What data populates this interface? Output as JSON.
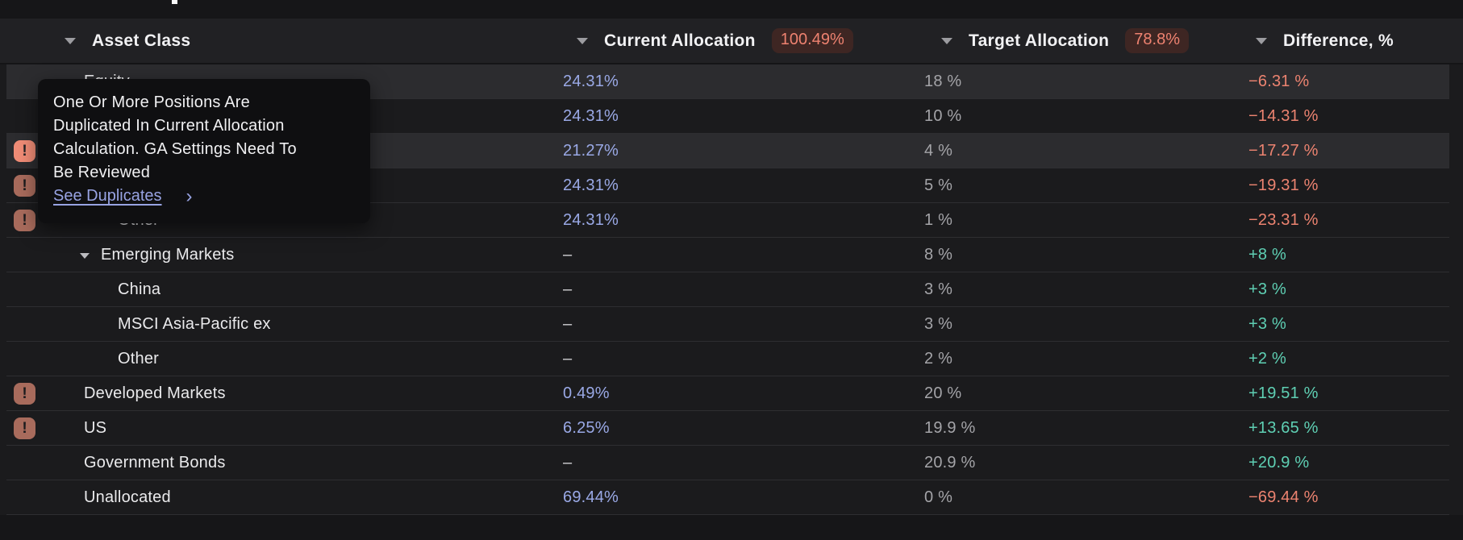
{
  "header": {
    "columns": [
      {
        "label": "Asset Class"
      },
      {
        "label": "Current Allocation",
        "badge": "100.49%"
      },
      {
        "label": "Target Allocation",
        "badge": "78.8%"
      },
      {
        "label": "Difference, %"
      }
    ]
  },
  "tooltip": {
    "lines": [
      "One Or More Positions Are",
      "Duplicated In Current Allocation",
      "Calculation. GA Settings Need To",
      "Be Reviewed"
    ],
    "link_label": "See Duplicates",
    "chevron": "›"
  },
  "table": {
    "rows": [
      {
        "label": "Equity",
        "level": 1,
        "icon": null,
        "caret": false,
        "highlighted": true,
        "current": "24.31%",
        "current_tone": "value",
        "target": "18 %",
        "difference": "−6.31 %",
        "difference_tone": "negative"
      },
      {
        "label": "",
        "level": 2,
        "icon": null,
        "caret": false,
        "highlighted": false,
        "current": "24.31%",
        "current_tone": "value",
        "target": "10 %",
        "difference": "−14.31 %",
        "difference_tone": "negative"
      },
      {
        "label": "",
        "level": 2,
        "icon": "bright",
        "caret": false,
        "highlighted": true,
        "current": "21.27%",
        "current_tone": "value",
        "target": "4 %",
        "difference": "−17.27 %",
        "difference_tone": "negative"
      },
      {
        "label": "",
        "level": 2,
        "icon": "muted",
        "caret": false,
        "highlighted": false,
        "current": "24.31%",
        "current_tone": "value",
        "target": "5 %",
        "difference": "−19.31 %",
        "difference_tone": "negative"
      },
      {
        "label": "Other",
        "level": 3,
        "icon": "muted",
        "caret": false,
        "highlighted": false,
        "current": "24.31%",
        "current_tone": "value",
        "target": "1 %",
        "difference": "−23.31 %",
        "difference_tone": "negative"
      },
      {
        "label": "Emerging Markets",
        "level": 2,
        "icon": null,
        "caret": true,
        "highlighted": false,
        "current": "–",
        "current_tone": "dash",
        "target": "8 %",
        "difference": "+8 %",
        "difference_tone": "positive"
      },
      {
        "label": "China",
        "level": 3,
        "icon": null,
        "caret": false,
        "highlighted": false,
        "current": "–",
        "current_tone": "dash",
        "target": "3 %",
        "difference": "+3 %",
        "difference_tone": "positive"
      },
      {
        "label": "MSCI Asia-Pacific ex",
        "level": 3,
        "icon": null,
        "caret": false,
        "highlighted": false,
        "current": "–",
        "current_tone": "dash",
        "target": "3 %",
        "difference": "+3 %",
        "difference_tone": "positive"
      },
      {
        "label": "Other",
        "level": 3,
        "icon": null,
        "caret": false,
        "highlighted": false,
        "current": "–",
        "current_tone": "dash",
        "target": "2 %",
        "difference": "+2 %",
        "difference_tone": "positive"
      },
      {
        "label": "Developed Markets",
        "level": 1,
        "icon": "muted",
        "caret": false,
        "highlighted": false,
        "current": "0.49%",
        "current_tone": "value",
        "target": "20 %",
        "difference": "+19.51 %",
        "difference_tone": "positive"
      },
      {
        "label": "US",
        "level": 1,
        "icon": "muted",
        "caret": false,
        "highlighted": false,
        "current": "6.25%",
        "current_tone": "value",
        "target": "19.9 %",
        "difference": "+13.65 %",
        "difference_tone": "positive"
      },
      {
        "label": "Government Bonds",
        "level": 1,
        "icon": null,
        "caret": false,
        "highlighted": false,
        "current": "–",
        "current_tone": "dash",
        "target": "20.9 %",
        "difference": "+20.9 %",
        "difference_tone": "positive"
      },
      {
        "label": "Unallocated",
        "level": 1,
        "icon": null,
        "caret": false,
        "highlighted": false,
        "current": "69.44%",
        "current_tone": "value",
        "target": "0 %",
        "difference": "−69.44 %",
        "difference_tone": "negative"
      }
    ]
  },
  "colors": {
    "page_bg": "#161618",
    "header_bg": "#212124",
    "row_bg": "#1B1B1D",
    "row_highlight": "#2C2C2F",
    "divider": "#2E2E31",
    "current_value": "#9AA9E6",
    "target_value": "#A4A4A8",
    "negative": "#EC8370",
    "positive": "#5FD0B4",
    "badge_bg": "#3E2623",
    "badge_text": "#EE8270",
    "warning_icon_muted": "#A86B5C",
    "warning_icon_bright": "#F08C76",
    "tooltip_bg": "#0F0F11",
    "tooltip_link": "#98A3E3"
  }
}
